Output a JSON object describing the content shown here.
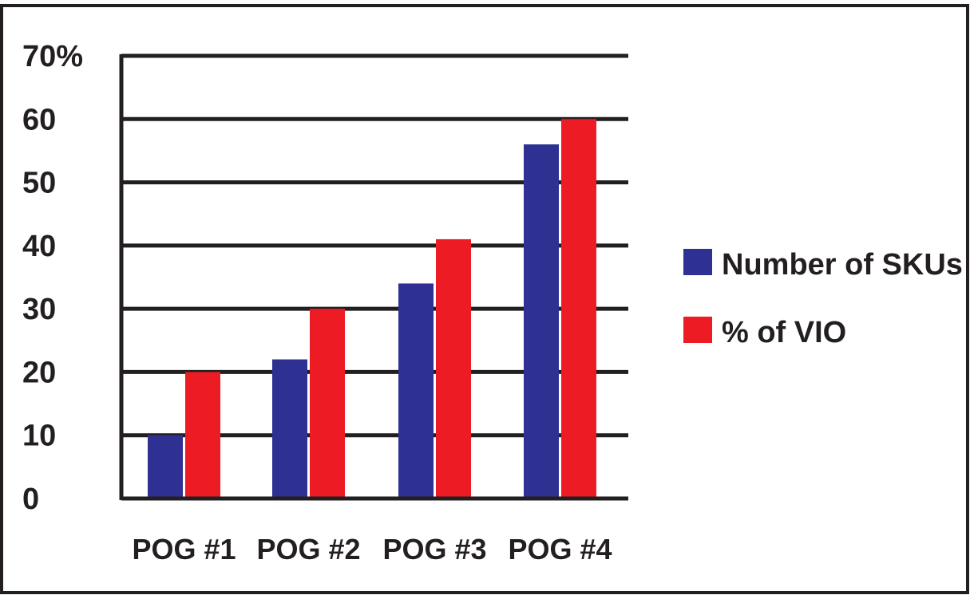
{
  "chart_data": {
    "type": "bar",
    "categories": [
      "POG #1",
      "POG #2",
      "POG #3",
      "POG #4"
    ],
    "series": [
      {
        "name": "Number of SKUs",
        "values": [
          10,
          22,
          34,
          56
        ],
        "color": "#2e3192"
      },
      {
        "name": "% of VIO",
        "values": [
          20,
          30,
          41,
          60
        ],
        "color": "#ed1c24"
      }
    ],
    "y_ticks": [
      "0",
      "10",
      "20",
      "30",
      "40",
      "50",
      "60",
      "70%"
    ],
    "ylim": [
      0,
      70
    ],
    "grid": true,
    "legend_position": "right",
    "axis_color": "#231f20"
  }
}
